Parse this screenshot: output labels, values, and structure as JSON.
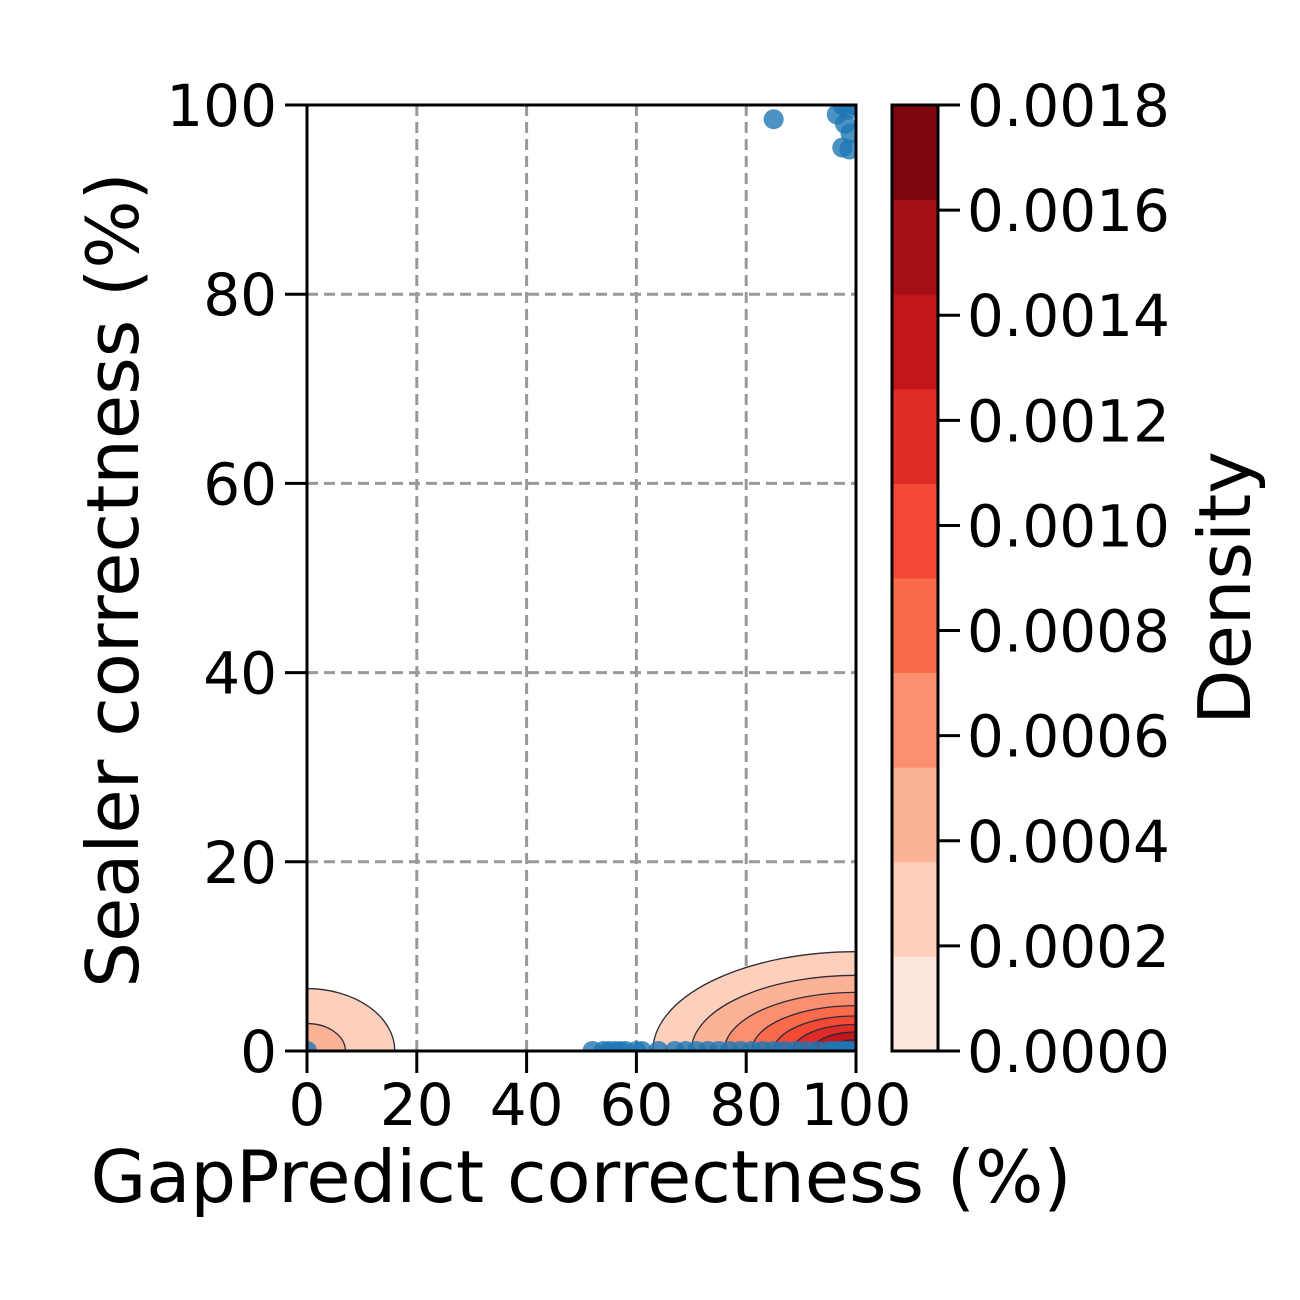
{
  "chart_data": {
    "type": "scatter",
    "title": "",
    "xlabel": "GapPredict correctness (%)",
    "ylabel": "Sealer correctness (%)",
    "xlim": [
      0,
      100
    ],
    "ylim": [
      0,
      100
    ],
    "xticks": [
      "0",
      "20",
      "40",
      "60",
      "80",
      "100"
    ],
    "yticks": [
      "0",
      "20",
      "40",
      "60",
      "80",
      "100"
    ],
    "grid": true,
    "grid_style": "dashed",
    "point_color": "#1f77b4",
    "points": [
      {
        "x": 0,
        "y": 0
      },
      {
        "x": 52,
        "y": 0
      },
      {
        "x": 54,
        "y": 0
      },
      {
        "x": 55,
        "y": 0
      },
      {
        "x": 56,
        "y": 0
      },
      {
        "x": 57,
        "y": 0
      },
      {
        "x": 58,
        "y": 0
      },
      {
        "x": 60,
        "y": 0
      },
      {
        "x": 61,
        "y": 0
      },
      {
        "x": 64,
        "y": 0
      },
      {
        "x": 67,
        "y": 0
      },
      {
        "x": 69,
        "y": 0
      },
      {
        "x": 71,
        "y": 0
      },
      {
        "x": 73,
        "y": 0
      },
      {
        "x": 75,
        "y": 0
      },
      {
        "x": 77,
        "y": 0
      },
      {
        "x": 79,
        "y": 0
      },
      {
        "x": 81,
        "y": 0
      },
      {
        "x": 83,
        "y": 0
      },
      {
        "x": 85,
        "y": 0
      },
      {
        "x": 87,
        "y": 0
      },
      {
        "x": 89,
        "y": 0
      },
      {
        "x": 91,
        "y": 0
      },
      {
        "x": 93,
        "y": 0
      },
      {
        "x": 95,
        "y": 0
      },
      {
        "x": 96,
        "y": 0
      },
      {
        "x": 97,
        "y": 0
      },
      {
        "x": 98,
        "y": 0
      },
      {
        "x": 99,
        "y": 0
      },
      {
        "x": 100,
        "y": 0
      },
      {
        "x": 85,
        "y": 98.5
      },
      {
        "x": 96.5,
        "y": 99
      },
      {
        "x": 97.5,
        "y": 100
      },
      {
        "x": 98.5,
        "y": 99.5
      },
      {
        "x": 99.5,
        "y": 100
      },
      {
        "x": 98,
        "y": 98
      },
      {
        "x": 99,
        "y": 97
      },
      {
        "x": 97.5,
        "y": 95.5
      },
      {
        "x": 98.8,
        "y": 95.3
      }
    ],
    "kde_contours": [
      {
        "center": [
          100,
          0
        ],
        "rx": 37,
        "ry": 10.5,
        "level": 0.0002
      },
      {
        "center": [
          100,
          0
        ],
        "rx": 30,
        "ry": 8.0,
        "level": 0.0004
      },
      {
        "center": [
          100,
          0
        ],
        "rx": 24,
        "ry": 6.2,
        "level": 0.0006
      },
      {
        "center": [
          100,
          0
        ],
        "rx": 19,
        "ry": 4.8,
        "level": 0.0008
      },
      {
        "center": [
          100,
          0
        ],
        "rx": 15,
        "ry": 3.7,
        "level": 0.001
      },
      {
        "center": [
          100,
          0
        ],
        "rx": 11.5,
        "ry": 2.8,
        "level": 0.0012
      },
      {
        "center": [
          100,
          0
        ],
        "rx": 8,
        "ry": 2.0,
        "level": 0.0014
      },
      {
        "center": [
          100,
          0
        ],
        "rx": 4.5,
        "ry": 1.2,
        "level": 0.0016
      },
      {
        "center": [
          0,
          0
        ],
        "rx": 16,
        "ry": 6.6,
        "level": 0.0002
      },
      {
        "center": [
          0,
          0
        ],
        "rx": 7,
        "ry": 2.9,
        "level": 0.0004
      }
    ],
    "colorbar": {
      "label": "Density",
      "min": 0,
      "max": 0.0018,
      "ticks": [
        "0.0000",
        "0.0002",
        "0.0004",
        "0.0006",
        "0.0008",
        "0.0010",
        "0.0012",
        "0.0014",
        "0.0016",
        "0.0018"
      ],
      "colors": [
        "#fee8dd",
        "#fdd0bc",
        "#fcb296",
        "#fc8f6f",
        "#fb6b4b",
        "#f34935",
        "#df2c26",
        "#c3161b",
        "#a50f15",
        "#7f0810"
      ]
    }
  }
}
